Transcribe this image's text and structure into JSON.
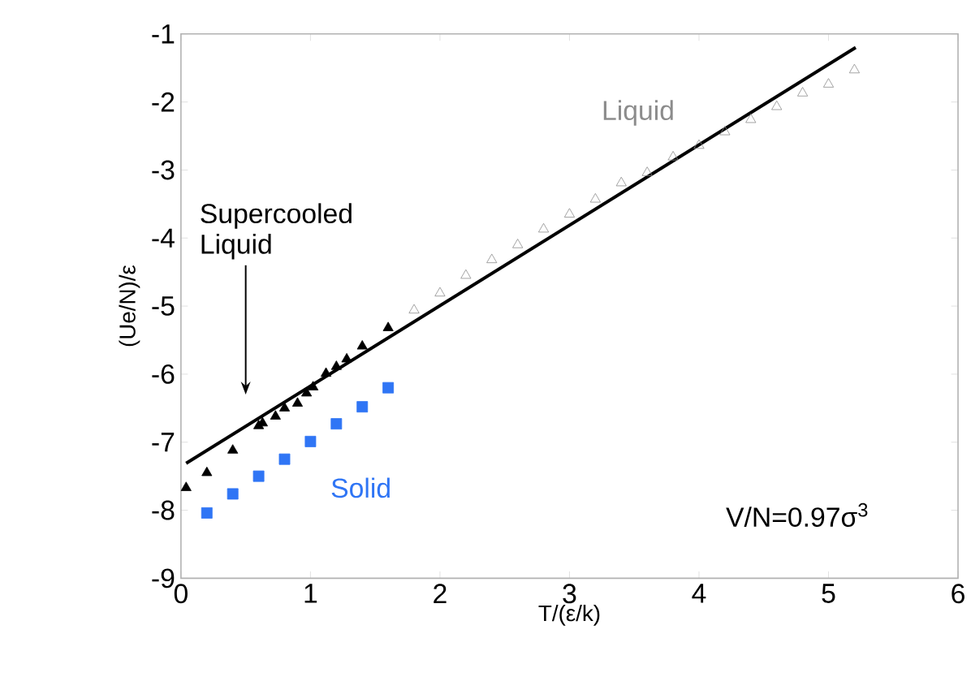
{
  "chart_data": {
    "type": "scatter",
    "xlabel": "T/(ε/k)",
    "ylabel": "(Ue/N)/ε",
    "xlim": [
      0,
      6
    ],
    "ylim": [
      -9,
      -1
    ],
    "xticks": [
      0,
      1,
      2,
      3,
      4,
      5,
      6
    ],
    "yticks": [
      -9,
      -8,
      -7,
      -6,
      -5,
      -4,
      -3,
      -2,
      -1
    ],
    "grid": false,
    "series": [
      {
        "name": "Solid",
        "marker": "square",
        "color": "#2f75f5",
        "x": [
          0.2,
          0.4,
          0.6,
          0.8,
          1.0,
          1.2,
          1.4,
          1.6
        ],
        "values": [
          -8.04,
          -7.76,
          -7.5,
          -7.25,
          -6.99,
          -6.73,
          -6.48,
          -6.2
        ]
      },
      {
        "name": "Supercooled Liquid",
        "marker": "triangle",
        "color": "#000000",
        "x": [
          0.04,
          0.2,
          0.4,
          0.6,
          0.63,
          0.73,
          0.8,
          0.9,
          0.97,
          1.02,
          1.12,
          1.2,
          1.28,
          1.4,
          1.6
        ],
        "values": [
          -7.67,
          -7.45,
          -7.12,
          -6.76,
          -6.72,
          -6.62,
          -6.5,
          -6.43,
          -6.28,
          -6.19,
          -5.99,
          -5.89,
          -5.78,
          -5.59,
          -5.32
        ]
      },
      {
        "name": "Liquid",
        "marker": "triangle",
        "color": "#8c8c8c",
        "x": [
          1.8,
          2.0,
          2.2,
          2.4,
          2.6,
          2.8,
          3.0,
          3.2,
          3.4,
          3.6,
          3.8,
          4.0,
          4.2,
          4.4,
          4.6,
          4.8,
          5.0,
          5.2
        ],
        "values": [
          -5.06,
          -4.81,
          -4.55,
          -4.32,
          -4.1,
          -3.87,
          -3.65,
          -3.43,
          -3.19,
          -3.04,
          -2.81,
          -2.64,
          -2.44,
          -2.26,
          -2.07,
          -1.87,
          -1.74,
          -1.53
        ]
      },
      {
        "type": "line",
        "marker": "none",
        "line_style": "solid",
        "color": "#000000",
        "x": [
          0.04,
          5.21
        ],
        "values": [
          -7.31,
          -1.2
        ]
      }
    ],
    "annotations": [
      "V/N=0.97σ$^{3}$"
    ]
  }
}
